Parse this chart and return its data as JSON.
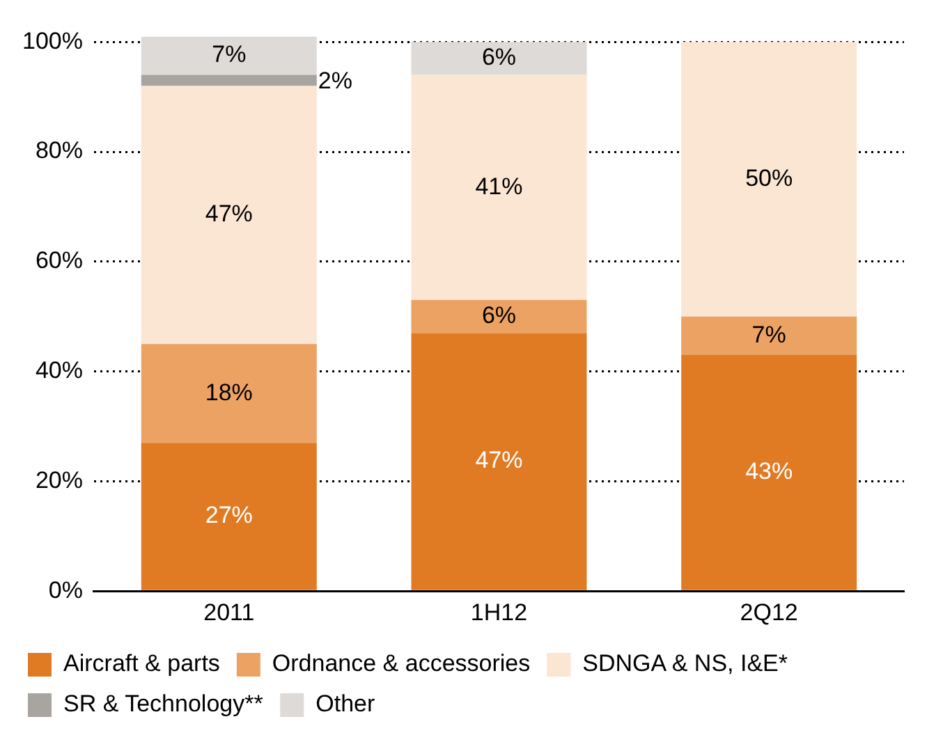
{
  "chart_data": {
    "type": "bar",
    "stacked": true,
    "categories": [
      "2011",
      "1H12",
      "2Q12"
    ],
    "series": [
      {
        "name": "Aircraft & parts",
        "color": "#e07b24",
        "values": [
          27,
          47,
          43
        ],
        "value_labels": [
          "27%",
          "47%",
          "43%"
        ]
      },
      {
        "name": "Ordnance & accessories",
        "color": "#eca263",
        "values": [
          18,
          6,
          7
        ],
        "value_labels": [
          "18%",
          "6%",
          "7%"
        ]
      },
      {
        "name": "SDNGA & NS, I&E*",
        "color": "#fbe5d3",
        "values": [
          47,
          41,
          50
        ],
        "value_labels": [
          "47%",
          "41%",
          "50%"
        ]
      },
      {
        "name": "SR & Technology**",
        "color": "#a8a49f",
        "values": [
          2,
          null,
          null
        ],
        "value_labels": [
          "2%",
          null,
          null
        ]
      },
      {
        "name": "Other",
        "color": "#dddad7",
        "values": [
          7,
          6,
          null
        ],
        "value_labels": [
          "7%",
          "6%",
          null
        ]
      }
    ],
    "ylim": [
      0,
      101
    ],
    "yticks": [
      {
        "value": 0,
        "label": "0%"
      },
      {
        "value": 20,
        "label": "20%"
      },
      {
        "value": 40,
        "label": "40%"
      },
      {
        "value": 60,
        "label": "60%"
      },
      {
        "value": 80,
        "label": "80%"
      },
      {
        "value": 100,
        "label": "100%"
      }
    ],
    "grid": "y",
    "legend": "bottom"
  }
}
